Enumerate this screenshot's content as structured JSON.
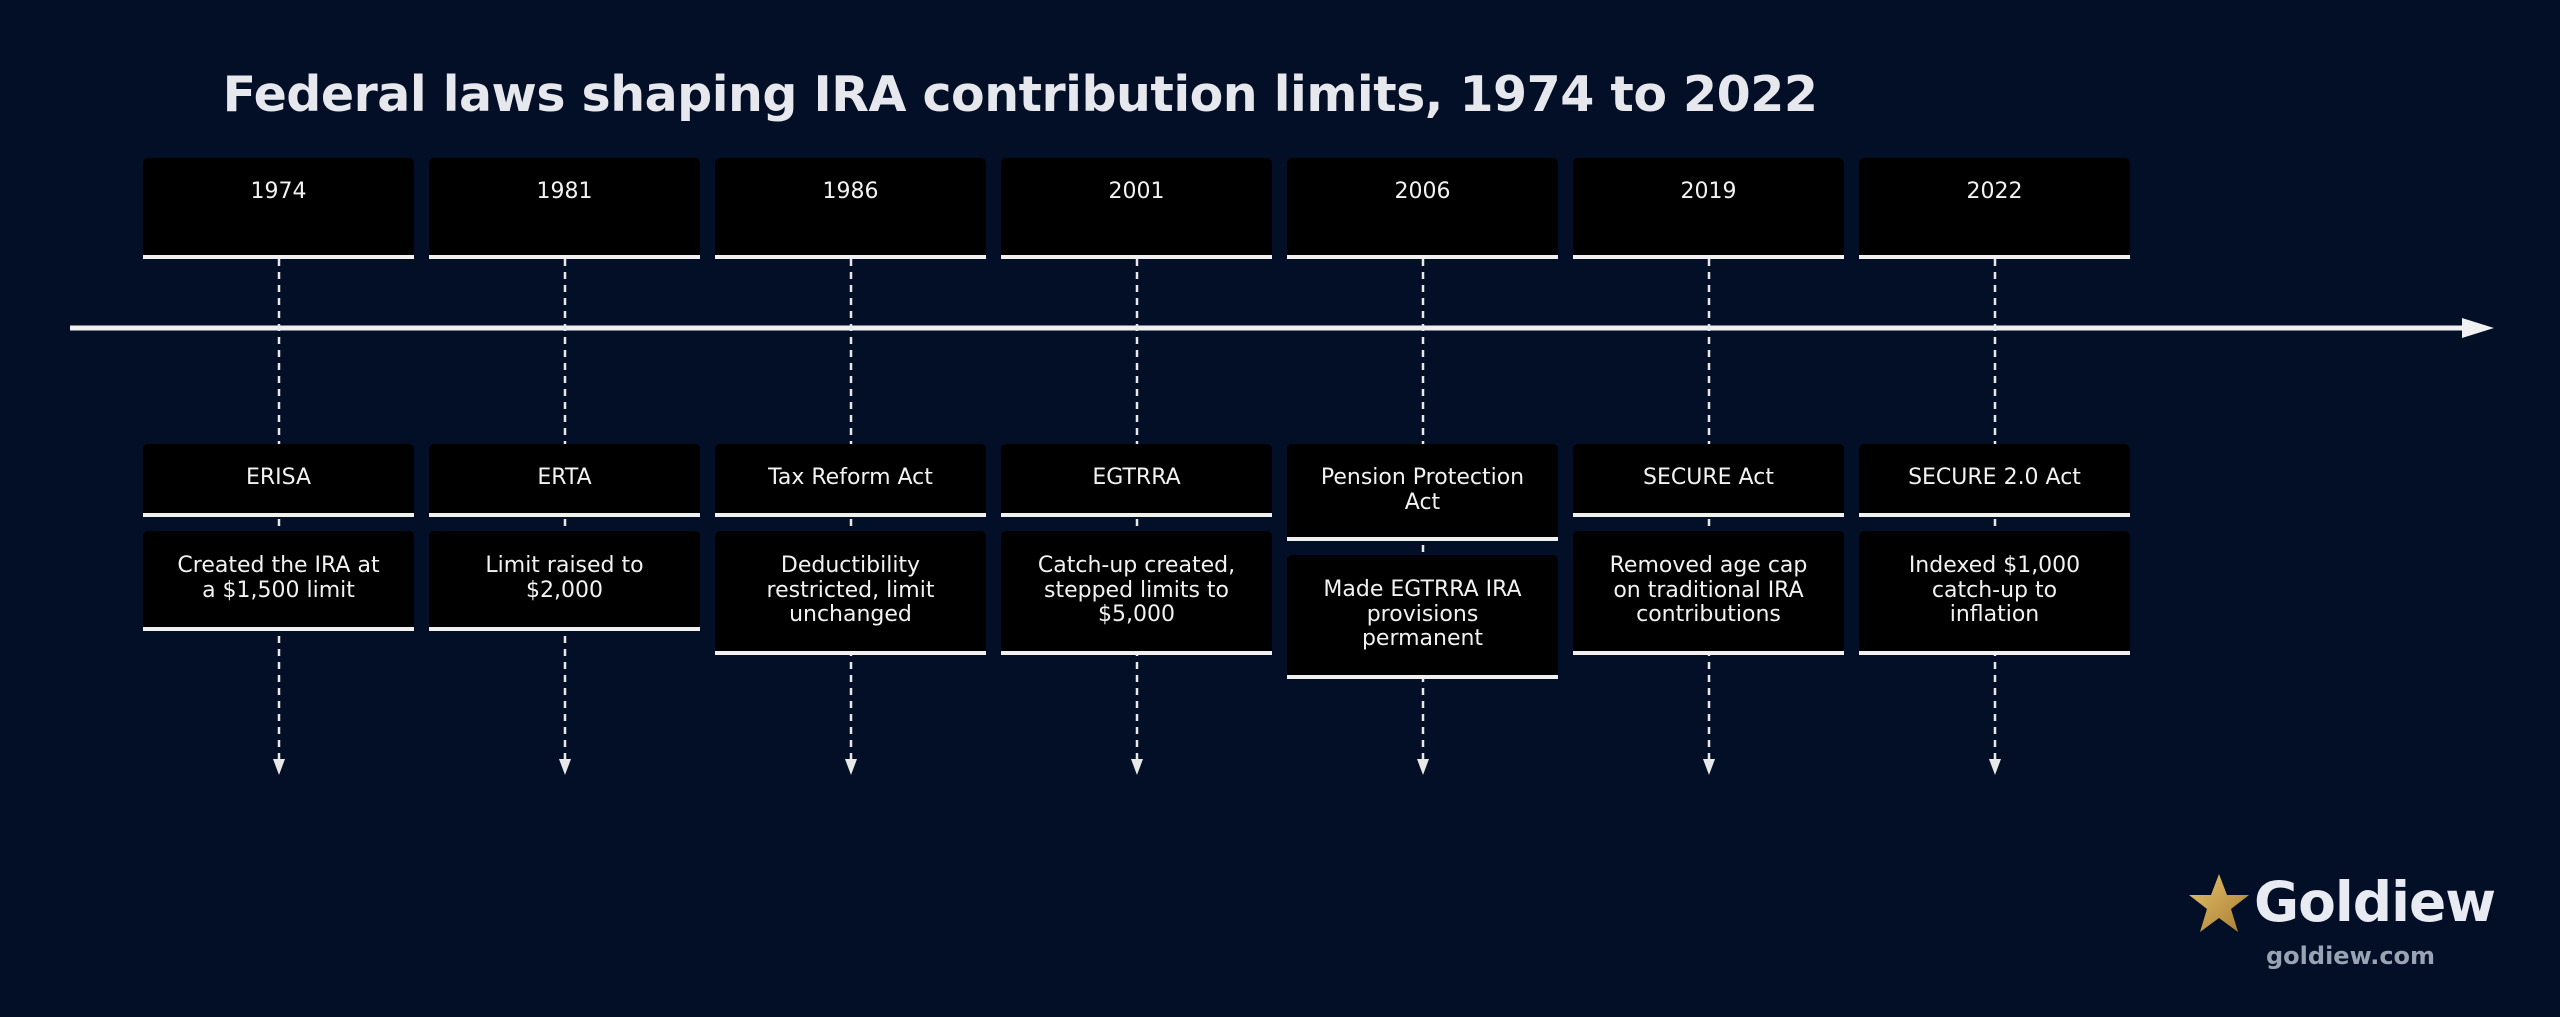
{
  "title": "Federal laws shaping IRA contribution limits, 1974 to 2022",
  "colors": {
    "background": "#020f26",
    "box": "#000000",
    "line": "#f0f0f0",
    "star": "#c9a24b"
  },
  "events": [
    {
      "year": "1974",
      "law": "ERISA",
      "effect": "Created the IRA at a $1,500 limit"
    },
    {
      "year": "1981",
      "law": "ERTA",
      "effect": "Limit raised to $2,000"
    },
    {
      "year": "1986",
      "law": "Tax Reform Act",
      "effect": "Deductibility restricted, limit unchanged"
    },
    {
      "year": "2001",
      "law": "EGTRRA",
      "effect": "Catch-up created, stepped limits to $5,000"
    },
    {
      "year": "2006",
      "law": "Pension Protection Act",
      "effect": "Made EGTRRA IRA provisions permanent"
    },
    {
      "year": "2019",
      "law": "SECURE Act",
      "effect": "Removed age cap on traditional IRA contributions"
    },
    {
      "year": "2022",
      "law": "SECURE 2.0 Act",
      "effect": "Indexed $1,000 catch-up to inflation"
    }
  ],
  "logo": {
    "name": "Goldiew",
    "url": "goldiew.com",
    "icon": "star-icon"
  }
}
